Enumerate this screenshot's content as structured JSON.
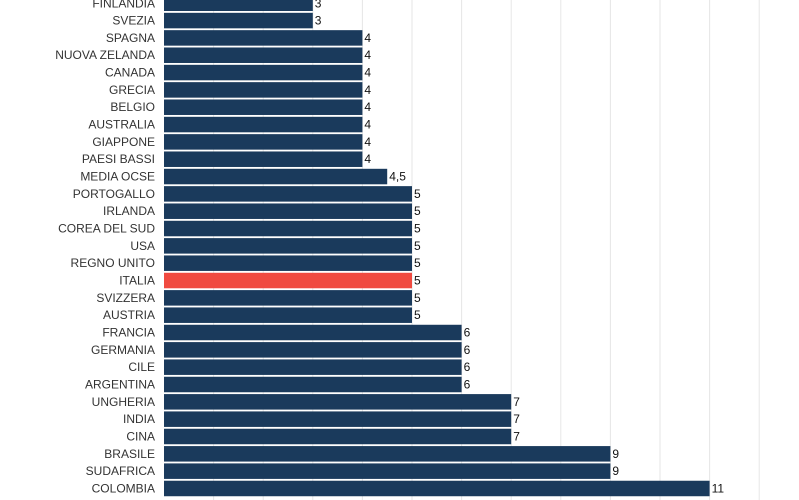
{
  "chart_data": {
    "type": "bar",
    "orientation": "horizontal",
    "categories": [
      "FINLANDIA",
      "SVEZIA",
      "SPAGNA",
      "NUOVA ZELANDA",
      "CANADA",
      "GRECIA",
      "BELGIO",
      "AUSTRALIA",
      "GIAPPONE",
      "PAESI BASSI",
      "MEDIA OCSE",
      "PORTOGALLO",
      "IRLANDA",
      "COREA DEL SUD",
      "USA",
      "REGNO UNITO",
      "ITALIA",
      "SVIZZERA",
      "AUSTRIA",
      "FRANCIA",
      "GERMANIA",
      "CILE",
      "ARGENTINA",
      "UNGHERIA",
      "INDIA",
      "CINA",
      "BRASILE",
      "SUDAFRICA",
      "COLOMBIA"
    ],
    "values": [
      3,
      3,
      4,
      4,
      4,
      4,
      4,
      4,
      4,
      4,
      4.5,
      5,
      5,
      5,
      5,
      5,
      5,
      5,
      5,
      6,
      6,
      6,
      6,
      7,
      7,
      7,
      9,
      9,
      11
    ],
    "value_labels": [
      "3",
      "3",
      "4",
      "4",
      "4",
      "4",
      "4",
      "4",
      "4",
      "4",
      "4,5",
      "5",
      "5",
      "5",
      "5",
      "5",
      "5",
      "5",
      "5",
      "6",
      "6",
      "6",
      "6",
      "7",
      "7",
      "7",
      "9",
      "9",
      "11"
    ],
    "highlight": "ITALIA",
    "colors": {
      "bar": "#1a3a5c",
      "highlight": "#f04a40",
      "grid": "#e6e6e6"
    },
    "xlim": [
      0,
      12.5
    ],
    "grid": true,
    "title": "",
    "xlabel": "",
    "ylabel": ""
  }
}
